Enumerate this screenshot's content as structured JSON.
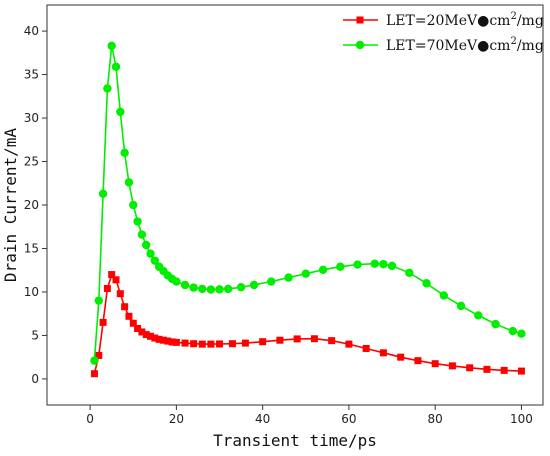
{
  "chart_data": {
    "type": "line",
    "title": "",
    "xlabel": "Transient time/ps",
    "ylabel": "Drain Current/mA",
    "xlim": [
      -10,
      105
    ],
    "ylim": [
      -3,
      43
    ],
    "xticks": [
      0,
      20,
      40,
      60,
      80,
      100
    ],
    "yticks": [
      0,
      5,
      10,
      15,
      20,
      25,
      30,
      35,
      40
    ],
    "legend_position": "top-right",
    "series": [
      {
        "name": "LET=20MeV●cm2/mg",
        "legend_main": "LET=20MeV●cm",
        "legend_sup": "2",
        "legend_tail": "/mg",
        "color": "#ff0000",
        "marker": "square",
        "x": [
          1,
          2,
          3,
          4,
          5,
          6,
          7,
          8,
          9,
          10,
          11,
          12,
          13,
          14,
          15,
          16,
          17,
          18,
          19,
          20,
          22,
          24,
          26,
          28,
          30,
          33,
          36,
          40,
          44,
          48,
          52,
          56,
          60,
          64,
          68,
          72,
          76,
          80,
          84,
          88,
          92,
          96,
          100
        ],
        "values": [
          0.6,
          2.7,
          6.5,
          10.4,
          12.0,
          11.4,
          9.8,
          8.3,
          7.2,
          6.4,
          5.8,
          5.4,
          5.1,
          4.9,
          4.7,
          4.55,
          4.45,
          4.35,
          4.25,
          4.2,
          4.12,
          4.05,
          4.0,
          4.0,
          4.02,
          4.05,
          4.12,
          4.28,
          4.45,
          4.6,
          4.62,
          4.4,
          4.0,
          3.5,
          3.0,
          2.5,
          2.1,
          1.75,
          1.5,
          1.28,
          1.1,
          0.98,
          0.9
        ]
      },
      {
        "name": "LET=70MeV●cm2/mg",
        "legend_main": "LET=70MeV●cm",
        "legend_sup": "2",
        "legend_tail": "/mg",
        "color": "#00ee00",
        "marker": "circle",
        "x": [
          1,
          2,
          3,
          4,
          5,
          6,
          7,
          8,
          9,
          10,
          11,
          12,
          13,
          14,
          15,
          16,
          17,
          18,
          19,
          20,
          22,
          24,
          26,
          28,
          30,
          32,
          35,
          38,
          42,
          46,
          50,
          54,
          58,
          62,
          66,
          68,
          70,
          74,
          78,
          82,
          86,
          90,
          94,
          98,
          100
        ],
        "values": [
          2.1,
          9.0,
          21.3,
          33.4,
          38.3,
          35.9,
          30.7,
          26.0,
          22.6,
          20.0,
          18.1,
          16.6,
          15.4,
          14.4,
          13.6,
          12.9,
          12.4,
          11.9,
          11.5,
          11.2,
          10.8,
          10.5,
          10.35,
          10.28,
          10.3,
          10.35,
          10.55,
          10.8,
          11.2,
          11.65,
          12.1,
          12.55,
          12.9,
          13.15,
          13.25,
          13.2,
          13.0,
          12.2,
          11.0,
          9.6,
          8.4,
          7.3,
          6.3,
          5.5,
          5.2
        ]
      }
    ]
  }
}
